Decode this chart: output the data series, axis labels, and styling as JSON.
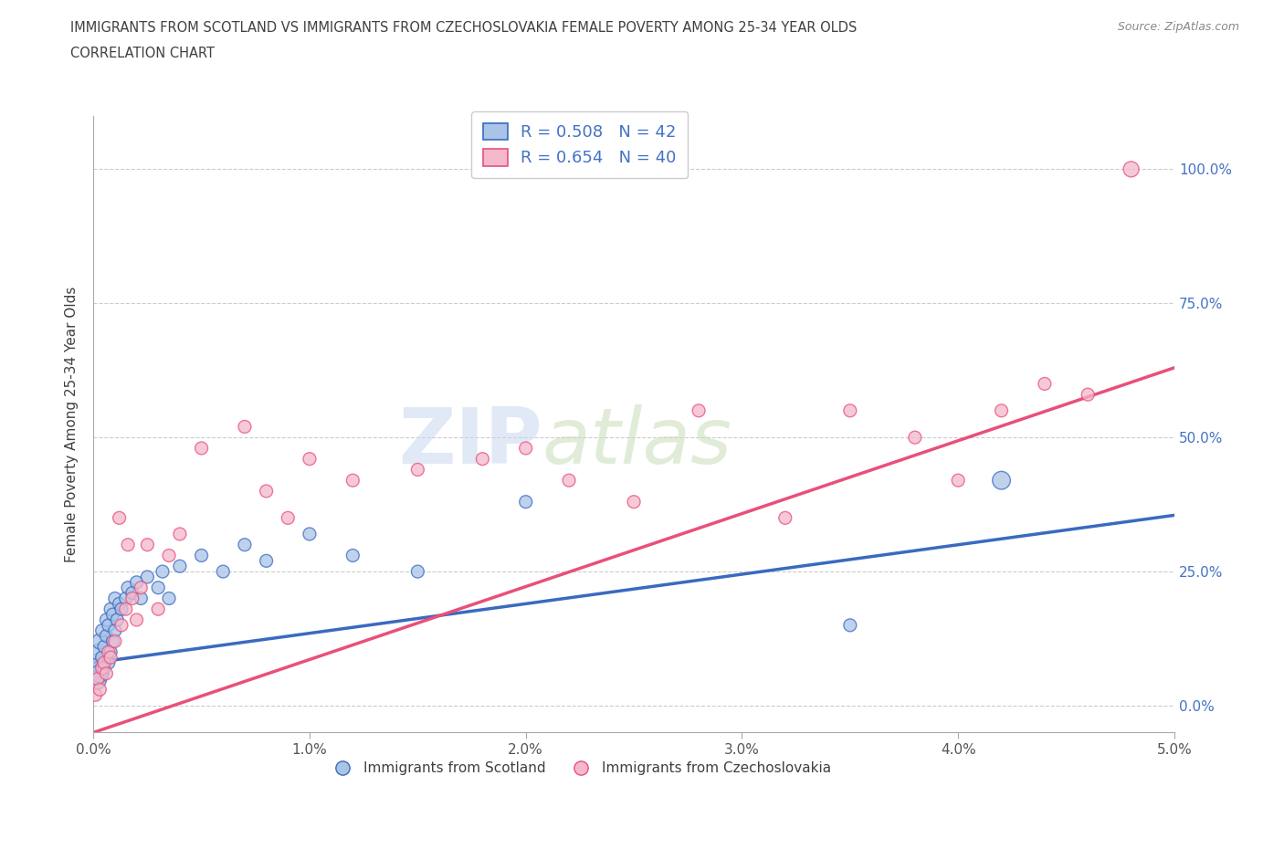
{
  "title_line1": "IMMIGRANTS FROM SCOTLAND VS IMMIGRANTS FROM CZECHOSLOVAKIA FEMALE POVERTY AMONG 25-34 YEAR OLDS",
  "title_line2": "CORRELATION CHART",
  "source": "Source: ZipAtlas.com",
  "ylabel": "Female Poverty Among 25-34 Year Olds",
  "xlim": [
    0.0,
    0.05
  ],
  "ylim": [
    -0.05,
    1.1
  ],
  "xticks": [
    0.0,
    0.01,
    0.02,
    0.03,
    0.04,
    0.05
  ],
  "xtick_labels": [
    "0.0%",
    "1.0%",
    "2.0%",
    "3.0%",
    "4.0%",
    "5.0%"
  ],
  "ytick_labels_right": [
    "0.0%",
    "25.0%",
    "50.0%",
    "75.0%",
    "100.0%"
  ],
  "ytick_vals_right": [
    0.0,
    0.25,
    0.5,
    0.75,
    1.0
  ],
  "watermark_zip": "ZIP",
  "watermark_atlas": "atlas",
  "legend_scotland": "Immigrants from Scotland",
  "legend_czech": "Immigrants from Czechoslovakia",
  "r_scotland": "0.508",
  "n_scotland": "42",
  "r_czech": "0.654",
  "n_czech": "40",
  "color_scotland": "#aac4e8",
  "color_czech": "#f4b8cc",
  "line_color_scotland": "#3a6abf",
  "line_color_czech": "#e8507a",
  "background": "#ffffff",
  "grid_color": "#cccccc",
  "title_color": "#404040",
  "scotland_x": [
    0.0001,
    0.0002,
    0.0002,
    0.0003,
    0.0003,
    0.0004,
    0.0004,
    0.0005,
    0.0005,
    0.0006,
    0.0006,
    0.0007,
    0.0007,
    0.0008,
    0.0008,
    0.0009,
    0.0009,
    0.001,
    0.001,
    0.0011,
    0.0012,
    0.0013,
    0.0015,
    0.0016,
    0.0018,
    0.002,
    0.0022,
    0.0025,
    0.003,
    0.0032,
    0.0035,
    0.004,
    0.005,
    0.006,
    0.007,
    0.008,
    0.01,
    0.012,
    0.015,
    0.02,
    0.035,
    0.042
  ],
  "scotland_y": [
    0.05,
    0.08,
    0.1,
    0.12,
    0.06,
    0.09,
    0.14,
    0.07,
    0.11,
    0.13,
    0.16,
    0.08,
    0.15,
    0.1,
    0.18,
    0.12,
    0.17,
    0.14,
    0.2,
    0.16,
    0.19,
    0.18,
    0.2,
    0.22,
    0.21,
    0.23,
    0.2,
    0.24,
    0.22,
    0.25,
    0.2,
    0.26,
    0.28,
    0.25,
    0.3,
    0.27,
    0.32,
    0.28,
    0.25,
    0.38,
    0.15,
    0.42
  ],
  "scotland_size": [
    300,
    200,
    150,
    150,
    200,
    100,
    100,
    100,
    100,
    100,
    100,
    100,
    100,
    100,
    100,
    100,
    100,
    100,
    100,
    100,
    100,
    100,
    100,
    100,
    100,
    100,
    100,
    100,
    100,
    100,
    100,
    100,
    100,
    100,
    100,
    100,
    100,
    100,
    100,
    100,
    100,
    200
  ],
  "czech_x": [
    0.0001,
    0.0002,
    0.0003,
    0.0004,
    0.0005,
    0.0006,
    0.0007,
    0.0008,
    0.001,
    0.0012,
    0.0013,
    0.0015,
    0.0016,
    0.0018,
    0.002,
    0.0022,
    0.0025,
    0.003,
    0.0035,
    0.004,
    0.005,
    0.007,
    0.008,
    0.009,
    0.01,
    0.012,
    0.015,
    0.018,
    0.02,
    0.022,
    0.025,
    0.028,
    0.032,
    0.035,
    0.038,
    0.04,
    0.042,
    0.044,
    0.046,
    0.048
  ],
  "czech_y": [
    0.02,
    0.05,
    0.03,
    0.07,
    0.08,
    0.06,
    0.1,
    0.09,
    0.12,
    0.35,
    0.15,
    0.18,
    0.3,
    0.2,
    0.16,
    0.22,
    0.3,
    0.18,
    0.28,
    0.32,
    0.48,
    0.52,
    0.4,
    0.35,
    0.46,
    0.42,
    0.44,
    0.46,
    0.48,
    0.42,
    0.38,
    0.55,
    0.35,
    0.55,
    0.5,
    0.42,
    0.55,
    0.6,
    0.58,
    1.0
  ],
  "czech_size": [
    100,
    100,
    100,
    100,
    100,
    100,
    100,
    100,
    100,
    100,
    100,
    100,
    100,
    100,
    100,
    100,
    100,
    100,
    100,
    100,
    100,
    100,
    100,
    100,
    100,
    100,
    100,
    100,
    100,
    100,
    100,
    100,
    100,
    100,
    100,
    100,
    100,
    100,
    100,
    150
  ],
  "scotland_trend": [
    0.08,
    0.355
  ],
  "czech_trend": [
    -0.05,
    0.63
  ]
}
